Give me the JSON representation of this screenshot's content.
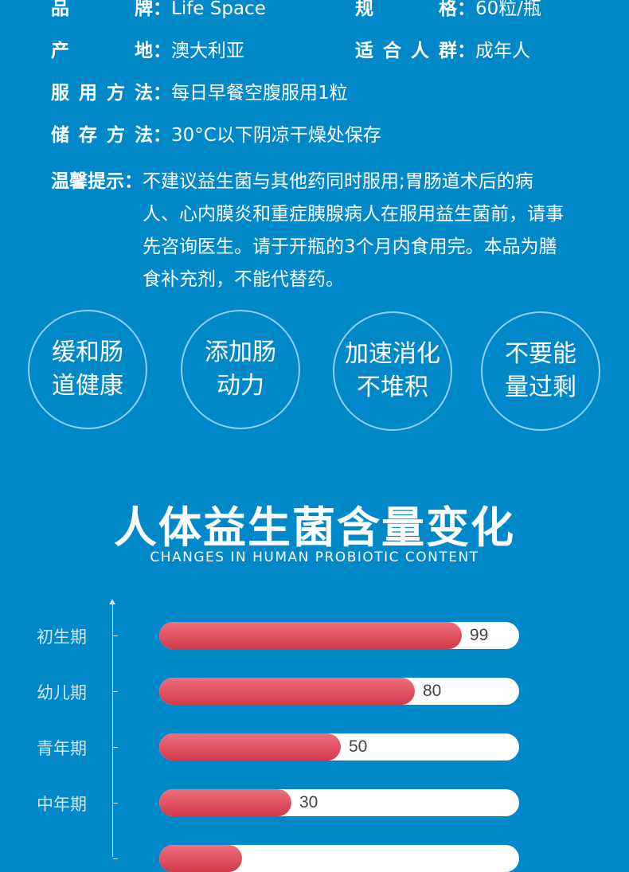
{
  "specs": [
    {
      "label": "品牌",
      "colon": "：",
      "value": "Life Space"
    },
    {
      "label": "规格",
      "colon": "：",
      "value": "60粒/瓶"
    },
    {
      "label": "产地",
      "colon": "：",
      "value": "澳大利亚"
    },
    {
      "label": "适合人群",
      "colon": "：",
      "value": "成年人"
    },
    {
      "label": "服用方法",
      "colon": "：",
      "value": "每日早餐空腹服用1粒"
    },
    {
      "label": "储存方法",
      "colon": "：",
      "value": "30°C以下阴凉干燥处保存"
    }
  ],
  "tip": {
    "label": "温馨提示：",
    "value": "不建议益生菌与其他药同时服用;胃肠道术后的病人、心内膜炎和重症胰腺病人在服用益生菌前，请事先咨询医生。请于开瓶的3个月内食用完。本品为膳食补充剂，不能代替药。"
  },
  "features": [
    "缓和肠道健康",
    "添加肠动力",
    "加速消化不堆积",
    "不要能量过剩"
  ],
  "section": {
    "title": "人体益生菌含量变化",
    "subtitle": "CHANGES IN HUMAN PROBIOTIC CONTENT"
  },
  "colors": {
    "background": "#0088c8",
    "bar_fill": "#e0505f",
    "track": "#ffffff"
  },
  "chart_data": {
    "type": "bar",
    "orientation": "horizontal",
    "categories": [
      "初生期",
      "幼儿期",
      "青年期",
      "中年期",
      ""
    ],
    "values": [
      99,
      80,
      50,
      30,
      10
    ],
    "value_labels": [
      "99",
      "80",
      "50",
      "30",
      ""
    ]
  }
}
